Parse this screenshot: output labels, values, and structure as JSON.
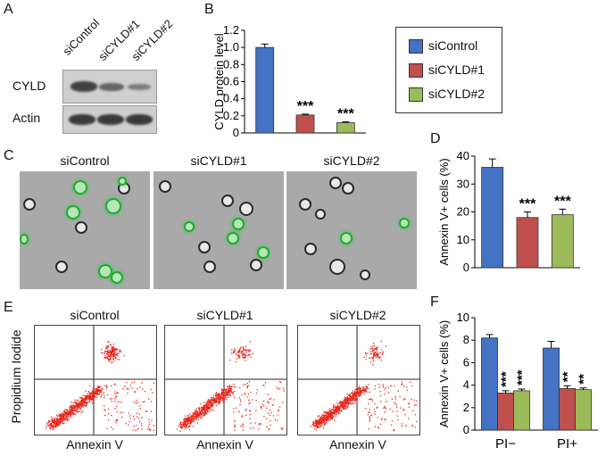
{
  "panels": {
    "A": "A",
    "B": "B",
    "C": "C",
    "D": "D",
    "E": "E",
    "F": "F"
  },
  "blot": {
    "lanes": [
      "siControl",
      "siCYLD#1",
      "siCYLD#2"
    ],
    "rows": [
      "CYLD",
      "Actin"
    ]
  },
  "legend": {
    "items": [
      {
        "label": "siControl",
        "color": "#4472c4"
      },
      {
        "label": "siCYLD#1",
        "color": "#c0504d"
      },
      {
        "label": "siCYLD#2",
        "color": "#9bbb59"
      }
    ]
  },
  "micro": {
    "titles": [
      "siControl",
      "siCYLD#1",
      "siCYLD#2"
    ]
  },
  "flow": {
    "titles": [
      "siControl",
      "siCYLD#1",
      "siCYLD#2"
    ],
    "xlabel": "Annexin V",
    "ylabel": "Propidium Iodide"
  },
  "colors": {
    "ctrl": "#4472c4",
    "c1": "#c0504d",
    "c2": "#9bbb59"
  },
  "chart_data": [
    {
      "id": "B",
      "type": "bar",
      "categories": [
        "siControl",
        "siCYLD#1",
        "siCYLD#2"
      ],
      "values": [
        1.0,
        0.21,
        0.12
      ],
      "errors": [
        0.04,
        0.01,
        0.01
      ],
      "significance": [
        "",
        "***",
        "***"
      ],
      "ylabel": "CYLD protein level",
      "ylim": [
        0,
        1.2
      ],
      "yticks": [
        "0",
        "0.2",
        "0.4",
        "0.6",
        "0.8",
        "1.0",
        "1.2"
      ]
    },
    {
      "id": "D",
      "type": "bar",
      "categories": [
        "siControl",
        "siCYLD#1",
        "siCYLD#2"
      ],
      "values": [
        36,
        18,
        19
      ],
      "errors": [
        3,
        2,
        2
      ],
      "significance": [
        "",
        "***",
        "***"
      ],
      "ylabel": "Annexin V+ cells (%)",
      "ylim": [
        0,
        40
      ],
      "yticks": [
        "0",
        "10",
        "20",
        "30",
        "40"
      ]
    },
    {
      "id": "F",
      "type": "bar",
      "groups": [
        "PI−",
        "PI+"
      ],
      "series": [
        {
          "name": "siControl",
          "values": [
            8.2,
            7.3
          ],
          "errors": [
            0.3,
            0.6
          ]
        },
        {
          "name": "siCYLD#1",
          "values": [
            3.3,
            3.7
          ],
          "errors": [
            0.2,
            0.25
          ]
        },
        {
          "name": "siCYLD#2",
          "values": [
            3.5,
            3.6
          ],
          "errors": [
            0.15,
            0.15
          ]
        }
      ],
      "significance": [
        [
          "",
          "***",
          "***"
        ],
        [
          "",
          "**",
          "**"
        ]
      ],
      "ylabel": "Annexin V+ cells (%)",
      "ylim": [
        0,
        10
      ],
      "yticks": [
        "0",
        "2",
        "4",
        "6",
        "8",
        "10"
      ]
    }
  ]
}
